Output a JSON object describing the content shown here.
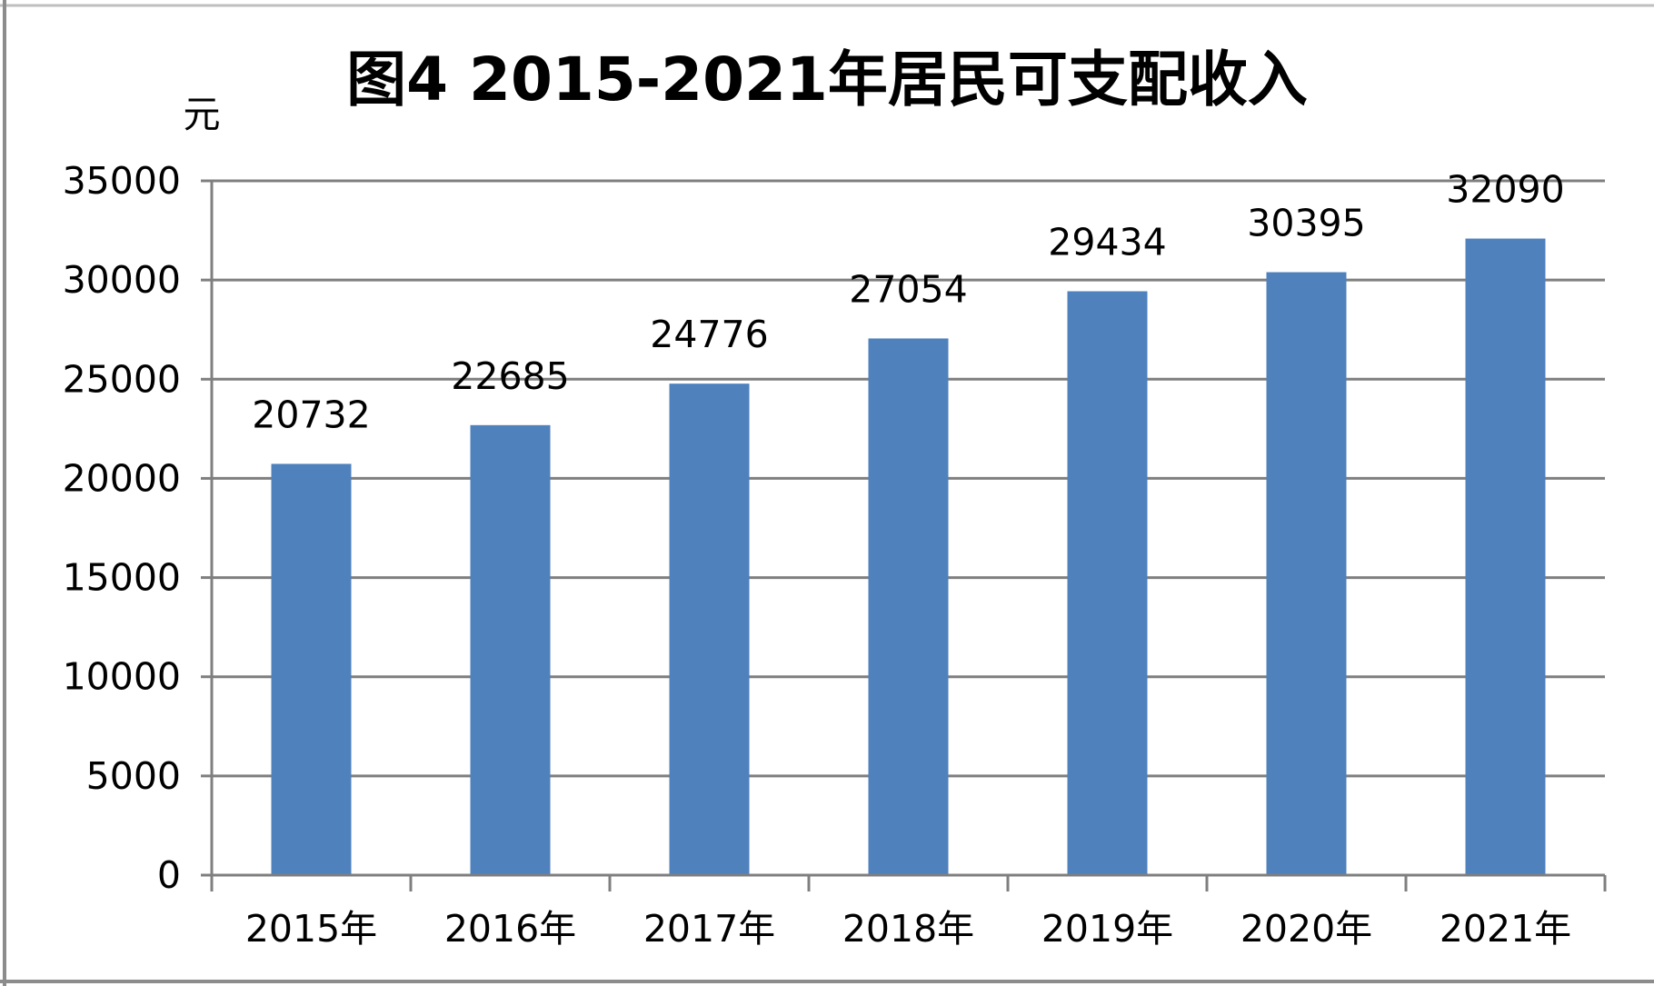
{
  "chart_data": {
    "type": "bar",
    "title": "图4  2015-2021年居民可支配收入",
    "ylabel": "元",
    "xlabel": "",
    "categories": [
      "2015年",
      "2016年",
      "2017年",
      "2018年",
      "2019年",
      "2020年",
      "2021年"
    ],
    "values": [
      20732,
      22685,
      24776,
      27054,
      29434,
      30395,
      32090
    ],
    "data_labels": [
      "20732",
      "22685",
      "24776",
      "27054",
      "29434",
      "30395",
      "32090"
    ],
    "ylim": [
      0,
      35000
    ],
    "y_ticks": [
      0,
      5000,
      10000,
      15000,
      20000,
      25000,
      30000,
      35000
    ],
    "y_tick_labels": [
      "0",
      "5000",
      "10000",
      "15000",
      "20000",
      "25000",
      "30000",
      "35000"
    ],
    "grid": true,
    "legend": "none",
    "colors": {
      "bar": "#4f81bd",
      "grid": "#7f7f7f",
      "text": "#000000",
      "background": "#ffffff"
    }
  }
}
